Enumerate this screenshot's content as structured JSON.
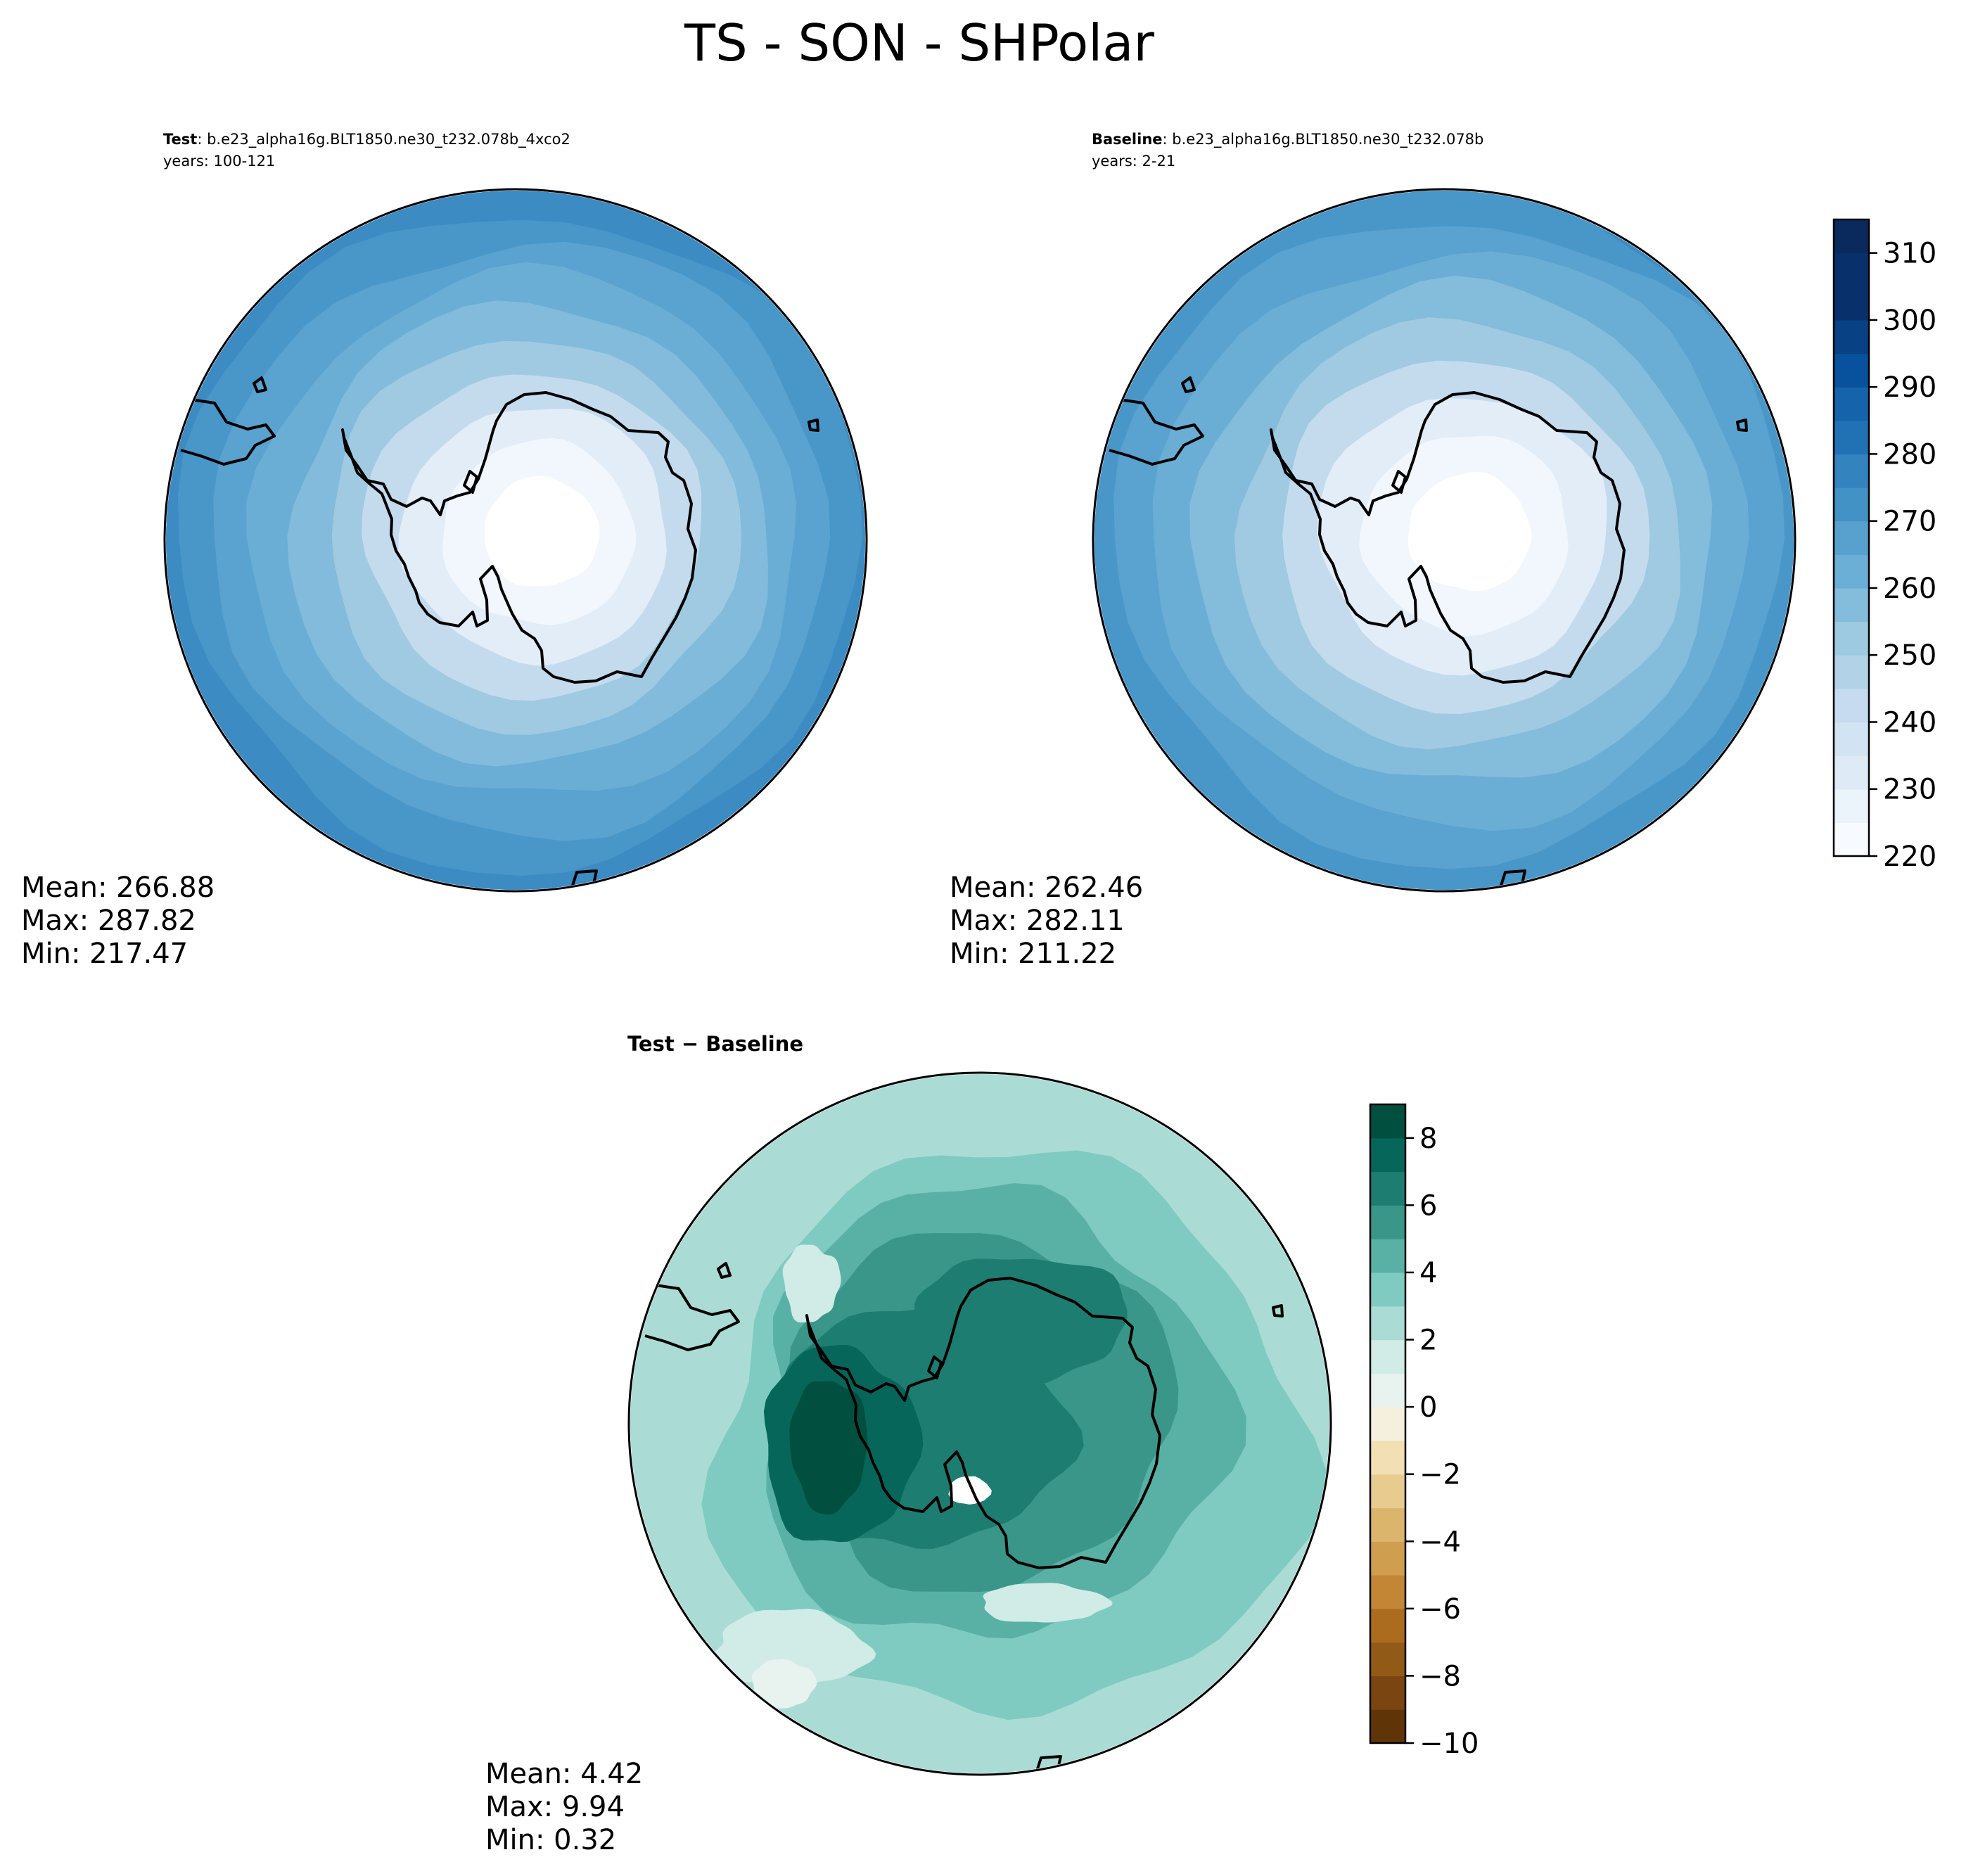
{
  "figure": {
    "title": "TS - SON - SHPolar"
  },
  "chart_data": [
    {
      "type": "heatmap",
      "panel": "test",
      "case_label": "Test",
      "case_name": ": b.e23_alpha16g.BLT1850.ne30_t232.078b_4xco2",
      "years": "years: 100-121",
      "projection": "south polar stereographic",
      "stats": {
        "mean": 266.88,
        "max": 287.82,
        "min": 217.47
      },
      "stats_text": [
        "Mean: 266.88",
        "Max: 287.82",
        "Min: 217.47"
      ],
      "colormap": "Blues",
      "levels": [
        220,
        225,
        230,
        235,
        240,
        245,
        250,
        255,
        260,
        265,
        270,
        275,
        280,
        285,
        290,
        295,
        300,
        305,
        310,
        315
      ],
      "rings": [
        {
          "value": 286,
          "color": "#3886c0"
        },
        {
          "value": 283,
          "color": "#3d8bc3"
        },
        {
          "value": 279,
          "color": "#4997c9"
        },
        {
          "value": 276,
          "color": "#5aa2cf"
        },
        {
          "value": 273,
          "color": "#6aaed6"
        },
        {
          "value": 269,
          "color": "#82bbdb"
        },
        {
          "value": 263,
          "color": "#a0cae1"
        },
        {
          "value": 256,
          "color": "#c4dbee"
        },
        {
          "value": 245,
          "color": "#e2edf8"
        },
        {
          "value": 230,
          "color": "#f2f7fd"
        },
        {
          "value": 218,
          "color": "#ffffff"
        }
      ]
    },
    {
      "type": "heatmap",
      "panel": "baseline",
      "case_label": "Baseline",
      "case_name": ": b.e23_alpha16g.BLT1850.ne30_t232.078b",
      "years": "years: 2-21",
      "projection": "south polar stereographic",
      "stats": {
        "mean": 262.46,
        "max": 282.11,
        "min": 211.22
      },
      "stats_text": [
        "Mean: 262.46",
        "Max: 282.11",
        "Min: 211.22"
      ],
      "colormap": "Blues",
      "levels": [
        220,
        225,
        230,
        235,
        240,
        245,
        250,
        255,
        260,
        265,
        270,
        275,
        280,
        285,
        290,
        295,
        300,
        305,
        310,
        315
      ],
      "colorbar_ticks": [
        "220",
        "230",
        "240",
        "250",
        "260",
        "270",
        "280",
        "290",
        "300",
        "310"
      ],
      "colorbar_tick_values": [
        220,
        230,
        240,
        250,
        260,
        270,
        280,
        290,
        300,
        310
      ],
      "colorbar_range": [
        220,
        315
      ],
      "colorbar_colors": [
        "#f7fbff",
        "#ebf3fb",
        "#deebf7",
        "#d2e3f3",
        "#c6dbef",
        "#b2d2e8",
        "#9ecae1",
        "#84bcdb",
        "#6baed6",
        "#58a1cf",
        "#4292c6",
        "#3383be",
        "#2171b5",
        "#1563aa",
        "#08519c",
        "#084285",
        "#08306b",
        "#08306b",
        "#0a2a5e"
      ],
      "rings": [
        {
          "value": 281,
          "color": "#3d8bc3"
        },
        {
          "value": 278,
          "color": "#4997c9"
        },
        {
          "value": 274,
          "color": "#5aa2cf"
        },
        {
          "value": 270,
          "color": "#6aaed6"
        },
        {
          "value": 265,
          "color": "#84bcdb"
        },
        {
          "value": 259,
          "color": "#a0cae1"
        },
        {
          "value": 251,
          "color": "#c4dbee"
        },
        {
          "value": 240,
          "color": "#e2edf8"
        },
        {
          "value": 225,
          "color": "#f2f7fd"
        },
        {
          "value": 212,
          "color": "#ffffff"
        }
      ]
    },
    {
      "type": "heatmap",
      "panel": "difference",
      "title": "Test − Baseline",
      "projection": "south polar stereographic",
      "stats": {
        "mean": 4.42,
        "max": 9.94,
        "min": 0.32
      },
      "stats_text": [
        "Mean:  4.42",
        "Max:  9.94",
        "Min:  0.32"
      ],
      "colormap": "BrBG",
      "levels": [
        -10,
        -9,
        -8,
        -7,
        -6,
        -5,
        -4,
        -3,
        -2,
        -1,
        0,
        1,
        2,
        3,
        4,
        5,
        6,
        7,
        8,
        9
      ],
      "colorbar_ticks": [
        "−10",
        "−8",
        "−6",
        "−4",
        "−2",
        "0",
        "2",
        "4",
        "6",
        "8"
      ],
      "colorbar_tick_values": [
        -10,
        -8,
        -6,
        -4,
        -2,
        0,
        2,
        4,
        6,
        8
      ],
      "colorbar_range": [
        -10,
        9
      ],
      "colorbar_colors": [
        "#5f3508",
        "#7a4510",
        "#925a17",
        "#ac6c1f",
        "#c28635",
        "#cf9e4f",
        "#dcb56d",
        "#e8cc8f",
        "#f2e0b4",
        "#f5efdd",
        "#e8f2ef",
        "#d1ebe6",
        "#aadcd5",
        "#80cbc1",
        "#59b1a5",
        "#399688",
        "#1d7d71",
        "#07665a",
        "#01503f"
      ],
      "regions": [
        {
          "value": 3,
          "color": "#aadcd5"
        },
        {
          "value": 4,
          "color": "#80cbc1"
        },
        {
          "value": 5,
          "color": "#59b1a5"
        },
        {
          "value": 6,
          "color": "#399688"
        },
        {
          "value": 7,
          "color": "#1d7d71"
        },
        {
          "value": 8,
          "color": "#07665a"
        },
        {
          "value": 9.5,
          "color": "#01503f"
        },
        {
          "value": 1.5,
          "color": "#d1ebe6"
        },
        {
          "value": 0.5,
          "color": "#e8f2ef"
        }
      ]
    }
  ]
}
